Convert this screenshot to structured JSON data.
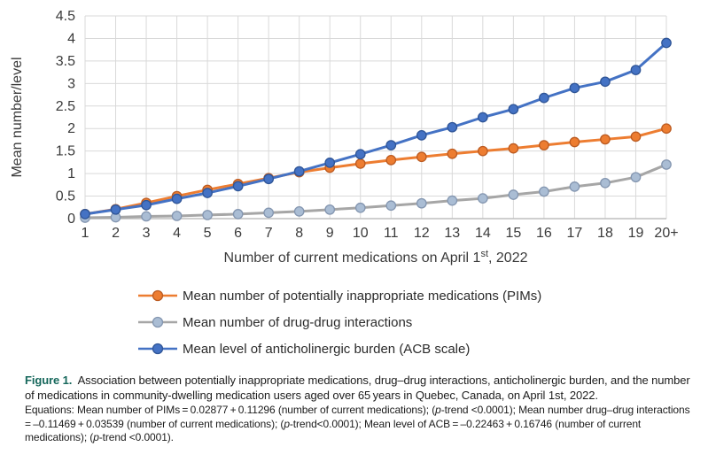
{
  "figure": {
    "label": "Figure 1.",
    "label_color": "#17685c",
    "caption": "Association between potentially inappropriate medications, drug–drug interactions, anticholinergic burden, and the number of medications in community-dwelling medication users aged over 65 years in Quebec, Canada, on April 1st, 2022.",
    "equations_rich": [
      {
        "t": "Equations: Mean number of PIMs = 0.02877 + 0.11296 (number of current medications); ("
      },
      {
        "t": "p",
        "i": true
      },
      {
        "t": "-trend <0.0001); Mean number drug–drug interactions = –0.11469 + 0.03539 (number of current medications); ("
      },
      {
        "t": "p",
        "i": true
      },
      {
        "t": "-trend<0.0001); Mean level of ACB = –0.22463 + 0.16746 (number of current medications); ("
      },
      {
        "t": "p",
        "i": true
      },
      {
        "t": "-trend <0.0001)."
      }
    ]
  },
  "chart_data": {
    "type": "line",
    "title": "",
    "ylabel": "Mean number/level",
    "xlabel_parts": {
      "prefix": "Number of current medications on April 1",
      "sup": "st",
      "suffix": ", 2022"
    },
    "categories": [
      "1",
      "2",
      "3",
      "4",
      "5",
      "6",
      "7",
      "8",
      "9",
      "10",
      "11",
      "12",
      "13",
      "14",
      "15",
      "16",
      "17",
      "18",
      "19",
      "20+"
    ],
    "ylim": [
      0,
      4.5
    ],
    "ytick_step": 0.5,
    "yticks": [
      "0",
      "0.5",
      "1",
      "1.5",
      "2",
      "2.5",
      "3",
      "3.5",
      "4",
      "4.5"
    ],
    "grid": true,
    "legend_position": "bottom-left",
    "colors": {
      "gridline": "#d9d9d9",
      "axis_line": "#bfbfbf",
      "tick_text": "#3a3a3a"
    },
    "series": [
      {
        "name": "Mean number of potentially inappropriate medications (PIMs)",
        "line_color": "#ed7d31",
        "marker_fill": "#ed7d31",
        "marker_stroke": "#bc5b21",
        "values": [
          0.1,
          0.21,
          0.35,
          0.5,
          0.64,
          0.77,
          0.9,
          1.03,
          1.13,
          1.22,
          1.3,
          1.37,
          1.44,
          1.5,
          1.56,
          1.63,
          1.7,
          1.76,
          1.82,
          2.0
        ]
      },
      {
        "name": "Mean number of drug-drug interactions",
        "line_color": "#a6a6a6",
        "marker_fill": "#aabdd4",
        "marker_stroke": "#8496b0",
        "values": [
          0.02,
          0.03,
          0.05,
          0.06,
          0.08,
          0.1,
          0.13,
          0.16,
          0.2,
          0.24,
          0.29,
          0.34,
          0.4,
          0.45,
          0.53,
          0.6,
          0.71,
          0.79,
          0.92,
          1.2
        ]
      },
      {
        "name": "Mean level of anticholinergic burden (ACB scale)",
        "line_color": "#4472c4",
        "marker_fill": "#4472c4",
        "marker_stroke": "#2f5597",
        "values": [
          0.1,
          0.2,
          0.3,
          0.44,
          0.57,
          0.72,
          0.88,
          1.05,
          1.24,
          1.43,
          1.63,
          1.85,
          2.03,
          2.25,
          2.43,
          2.68,
          2.9,
          3.04,
          3.3,
          3.9
        ]
      }
    ]
  }
}
